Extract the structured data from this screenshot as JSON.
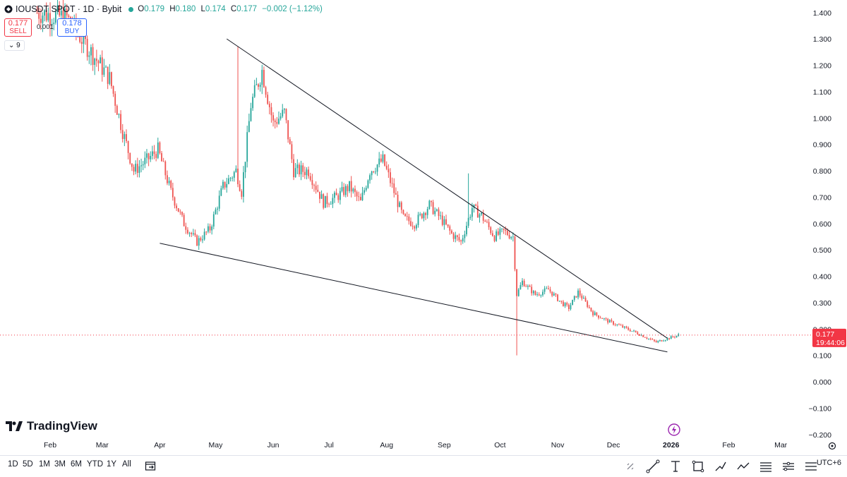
{
  "header": {
    "symbol_title": "IOUSDT SPOT · 1D · Bybit",
    "ohlc": {
      "o_label": "O",
      "o": "0.179",
      "h_label": "H",
      "h": "0.180",
      "l_label": "L",
      "l": "0.174",
      "c_label": "C",
      "c": "0.177",
      "change": "−0.002 (−1.12%)"
    },
    "status_color": "#26a69a"
  },
  "trade": {
    "sell_price": "0.177",
    "sell_label": "SELL",
    "spread": "0.001",
    "buy_price": "0.178",
    "buy_label": "BUY"
  },
  "indicators_toggle": "9",
  "price_tag": {
    "price": "0.177",
    "countdown": "19:44:06",
    "color": "#f23645"
  },
  "brand": "TradingView",
  "range_buttons": [
    "1D",
    "5D",
    "1M",
    "3M",
    "6M",
    "YTD",
    "1Y",
    "All"
  ],
  "timezone": "UTC+6",
  "chart_data": {
    "type": "candlestick",
    "y_ticks": [
      "1.400",
      "1.300",
      "1.200",
      "1.100",
      "1.000",
      "0.900",
      "0.800",
      "0.700",
      "0.600",
      "0.500",
      "0.400",
      "0.300",
      "0.200",
      "0.100",
      "0.000",
      "−0.100",
      "−0.200"
    ],
    "y_range": [
      -0.2,
      1.4
    ],
    "x_ticks": [
      "Feb",
      "Mar",
      "Apr",
      "May",
      "Jun",
      "Jul",
      "Aug",
      "Sep",
      "Oct",
      "Nov",
      "Dec",
      "2026",
      "Feb",
      "Mar"
    ],
    "up_color": "#26a69a",
    "down_color": "#ef5350",
    "last_price": 0.177,
    "trendlines": [
      {
        "from": {
          "date": "2025-05-07",
          "price": 1.3
        },
        "to": {
          "date": "2025-12-30",
          "price": 0.165
        }
      },
      {
        "from": {
          "date": "2025-04-01",
          "price": 0.525
        },
        "to": {
          "date": "2025-12-30",
          "price": 0.113
        }
      }
    ],
    "price_path": [
      {
        "date": "2025-01-25",
        "price": 1.4
      },
      {
        "date": "2025-02-10",
        "price": 1.38
      },
      {
        "date": "2025-03-05",
        "price": 1.15
      },
      {
        "date": "2025-03-12",
        "price": 0.95
      },
      {
        "date": "2025-03-18",
        "price": 0.8
      },
      {
        "date": "2025-03-25",
        "price": 0.84
      },
      {
        "date": "2025-03-31",
        "price": 0.88
      },
      {
        "date": "2025-04-07",
        "price": 0.72
      },
      {
        "date": "2025-04-14",
        "price": 0.6
      },
      {
        "date": "2025-04-21",
        "price": 0.53
      },
      {
        "date": "2025-04-28",
        "price": 0.58
      },
      {
        "date": "2025-05-05",
        "price": 0.74
      },
      {
        "date": "2025-05-12",
        "price": 0.8
      },
      {
        "date": "2025-05-15",
        "price": 0.72
      },
      {
        "date": "2025-05-20",
        "price": 1.05
      },
      {
        "date": "2025-05-26",
        "price": 1.18
      },
      {
        "date": "2025-06-01",
        "price": 0.98
      },
      {
        "date": "2025-06-07",
        "price": 1.02
      },
      {
        "date": "2025-06-12",
        "price": 0.8
      },
      {
        "date": "2025-06-20",
        "price": 0.8
      },
      {
        "date": "2025-06-28",
        "price": 0.68
      },
      {
        "date": "2025-07-05",
        "price": 0.7
      },
      {
        "date": "2025-07-12",
        "price": 0.74
      },
      {
        "date": "2025-07-18",
        "price": 0.68
      },
      {
        "date": "2025-07-23",
        "price": 0.8
      },
      {
        "date": "2025-07-30",
        "price": 0.84
      },
      {
        "date": "2025-08-04",
        "price": 0.74
      },
      {
        "date": "2025-08-10",
        "price": 0.62
      },
      {
        "date": "2025-08-16",
        "price": 0.6
      },
      {
        "date": "2025-08-24",
        "price": 0.67
      },
      {
        "date": "2025-08-30",
        "price": 0.62
      },
      {
        "date": "2025-09-05",
        "price": 0.56
      },
      {
        "date": "2025-09-10",
        "price": 0.53
      },
      {
        "date": "2025-09-16",
        "price": 0.66
      },
      {
        "date": "2025-09-21",
        "price": 0.63
      },
      {
        "date": "2025-09-28",
        "price": 0.55
      },
      {
        "date": "2025-10-03",
        "price": 0.57
      },
      {
        "date": "2025-10-08",
        "price": 0.55
      },
      {
        "date": "2025-10-10",
        "price": 0.33
      },
      {
        "date": "2025-10-13",
        "price": 0.38
      },
      {
        "date": "2025-10-20",
        "price": 0.33
      },
      {
        "date": "2025-10-27",
        "price": 0.35
      },
      {
        "date": "2025-11-03",
        "price": 0.3
      },
      {
        "date": "2025-11-07",
        "price": 0.28
      },
      {
        "date": "2025-11-12",
        "price": 0.34
      },
      {
        "date": "2025-11-20",
        "price": 0.26
      },
      {
        "date": "2025-11-28",
        "price": 0.23
      },
      {
        "date": "2025-12-05",
        "price": 0.21
      },
      {
        "date": "2025-12-12",
        "price": 0.19
      },
      {
        "date": "2025-12-18",
        "price": 0.17
      },
      {
        "date": "2025-12-24",
        "price": 0.15
      },
      {
        "date": "2025-12-28",
        "price": 0.16
      },
      {
        "date": "2026-01-02",
        "price": 0.17
      },
      {
        "date": "2026-01-05",
        "price": 0.177
      }
    ],
    "spikes": [
      {
        "date": "2025-10-10",
        "low": 0.1
      },
      {
        "date": "2025-09-14",
        "high": 0.79
      },
      {
        "date": "2025-05-13",
        "high": 1.27
      }
    ]
  }
}
